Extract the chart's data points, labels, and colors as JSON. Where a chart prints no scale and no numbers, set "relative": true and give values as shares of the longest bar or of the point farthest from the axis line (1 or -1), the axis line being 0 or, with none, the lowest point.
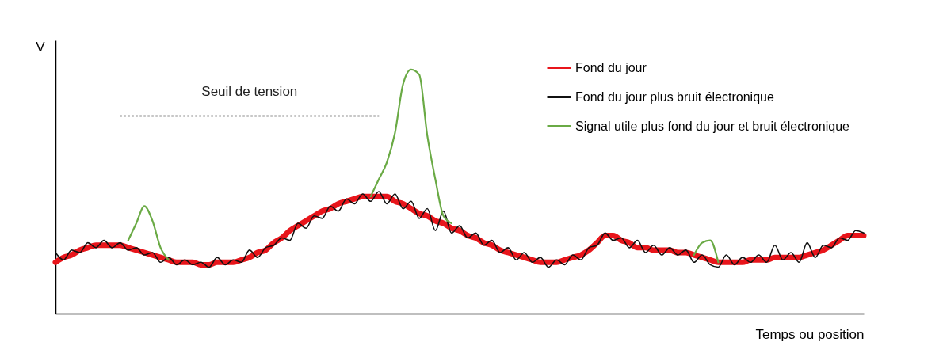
{
  "chart_data": {
    "type": "line",
    "relative": true,
    "xlabel": "Temps ou position",
    "ylabel": "V",
    "legend": "top right",
    "categories": [
      null,
      null,
      null,
      null,
      null,
      null,
      null,
      null,
      null,
      null,
      null,
      null,
      null,
      null,
      null,
      null,
      null,
      null,
      null,
      null,
      null,
      null,
      null,
      null,
      null,
      null,
      null,
      null,
      null,
      null,
      null,
      null,
      null,
      null,
      null,
      null,
      null,
      null,
      null,
      null,
      null,
      null,
      null,
      null,
      null,
      null,
      null,
      null,
      null,
      null,
      null,
      null,
      null,
      null,
      null,
      null,
      null,
      null,
      null,
      null,
      null,
      null,
      null,
      null,
      null,
      null,
      null,
      null,
      null,
      null,
      null,
      null,
      null,
      null,
      null,
      null,
      null,
      null,
      null,
      null,
      null,
      null,
      null,
      null,
      null,
      null,
      null,
      null,
      null,
      null,
      null,
      null,
      null,
      null,
      null,
      null,
      null,
      null,
      null,
      null,
      null
    ],
    "series": [
      {
        "name": "Fond du jour",
        "color": "#e8151b",
        "values": [
          0.21,
          0.23,
          0.24,
          0.26,
          0.27,
          0.28,
          0.28,
          0.28,
          0.28,
          0.27,
          0.26,
          0.25,
          0.24,
          0.23,
          0.22,
          0.21,
          0.21,
          0.21,
          0.2,
          0.2,
          0.21,
          0.21,
          0.21,
          0.22,
          0.23,
          0.25,
          0.26,
          0.29,
          0.31,
          0.34,
          0.36,
          0.38,
          0.4,
          0.42,
          0.43,
          0.45,
          0.46,
          0.47,
          0.48,
          0.48,
          0.48,
          0.48,
          0.46,
          0.45,
          0.43,
          0.41,
          0.4,
          0.38,
          0.37,
          0.35,
          0.34,
          0.32,
          0.31,
          0.29,
          0.28,
          0.26,
          0.25,
          0.24,
          0.23,
          0.22,
          0.21,
          0.21,
          0.21,
          0.22,
          0.23,
          0.24,
          0.26,
          0.29,
          0.32,
          0.32,
          0.3,
          0.29,
          0.27,
          0.27,
          0.26,
          0.26,
          0.26,
          0.25,
          0.25,
          0.24,
          0.23,
          0.22,
          0.21,
          0.21,
          0.21,
          0.21,
          0.22,
          0.22,
          0.22,
          0.23,
          0.23,
          0.23,
          0.23,
          0.24,
          0.25,
          0.26,
          0.28,
          0.3,
          0.32,
          0.32,
          0.32
        ]
      },
      {
        "name": "Fond du jour plus bruit électronique",
        "color": "#111111",
        "values": [
          0.25,
          0.22,
          0.26,
          0.25,
          0.29,
          0.27,
          0.3,
          0.27,
          0.29,
          0.26,
          0.27,
          0.24,
          0.25,
          0.21,
          0.23,
          0.2,
          0.22,
          0.2,
          0.21,
          0.19,
          0.23,
          0.2,
          0.22,
          0.21,
          0.26,
          0.23,
          0.27,
          0.28,
          0.31,
          0.3,
          0.37,
          0.35,
          0.4,
          0.39,
          0.44,
          0.42,
          0.47,
          0.45,
          0.49,
          0.46,
          0.5,
          0.45,
          0.49,
          0.43,
          0.46,
          0.39,
          0.43,
          0.34,
          0.42,
          0.33,
          0.36,
          0.31,
          0.33,
          0.28,
          0.3,
          0.25,
          0.27,
          0.22,
          0.25,
          0.21,
          0.23,
          0.19,
          0.22,
          0.2,
          0.24,
          0.22,
          0.27,
          0.28,
          0.33,
          0.3,
          0.31,
          0.27,
          0.3,
          0.25,
          0.28,
          0.24,
          0.27,
          0.24,
          0.26,
          0.21,
          0.24,
          0.2,
          0.19,
          0.24,
          0.2,
          0.23,
          0.21,
          0.24,
          0.21,
          0.28,
          0.22,
          0.25,
          0.21,
          0.29,
          0.23,
          0.28,
          0.27,
          0.31,
          0.3,
          0.34,
          0.33
        ]
      },
      {
        "name": "Signal utile plus fond du jour et bruit électronique",
        "color": "#6aaa45",
        "values": [
          null,
          null,
          null,
          null,
          null,
          null,
          null,
          null,
          null,
          0.3,
          0.37,
          0.44,
          0.38,
          0.27,
          0.22,
          null,
          null,
          null,
          null,
          null,
          null,
          null,
          null,
          null,
          null,
          null,
          null,
          null,
          null,
          null,
          null,
          null,
          null,
          null,
          null,
          null,
          null,
          null,
          null,
          0.48,
          0.55,
          0.62,
          0.74,
          0.94,
          1,
          0.98,
          0.73,
          0.55,
          0.4,
          0.37,
          null,
          null,
          null,
          null,
          null,
          null,
          null,
          null,
          null,
          null,
          null,
          null,
          null,
          null,
          null,
          null,
          null,
          null,
          null,
          null,
          null,
          null,
          null,
          null,
          null,
          null,
          null,
          null,
          null,
          0.24,
          0.29,
          0.3,
          0.21,
          null,
          null,
          null,
          null,
          null,
          null,
          null,
          null,
          null,
          null,
          null,
          null,
          null,
          null,
          null,
          null,
          null,
          null
        ]
      },
      {
        "name": "Seuil de tension",
        "color": "#222222",
        "line_style": "dotted",
        "values": [
          null,
          null,
          null,
          null,
          null,
          null,
          null,
          null,
          0.81,
          0.81,
          0.81,
          0.81,
          0.81,
          0.81,
          0.81,
          0.81,
          0.81,
          0.81,
          0.81,
          0.81,
          0.81,
          0.81,
          0.81,
          0.81,
          0.81,
          0.81,
          0.81,
          0.81,
          0.81,
          0.81,
          0.81,
          0.81,
          0.81,
          0.81,
          0.81,
          0.81,
          0.81,
          0.81,
          0.81,
          0.81,
          0.81,
          null,
          null,
          null,
          null,
          null,
          null,
          null,
          null,
          null,
          null,
          null,
          null,
          null,
          null,
          null,
          null,
          null,
          null,
          null,
          null,
          null,
          null,
          null,
          null,
          null,
          null,
          null,
          null,
          null,
          null,
          null,
          null,
          null,
          null,
          null,
          null,
          null,
          null,
          null,
          null,
          null,
          null,
          null,
          null,
          null,
          null,
          null,
          null,
          null,
          null,
          null,
          null,
          null,
          null,
          null,
          null,
          null,
          null,
          null,
          null
        ]
      }
    ]
  }
}
